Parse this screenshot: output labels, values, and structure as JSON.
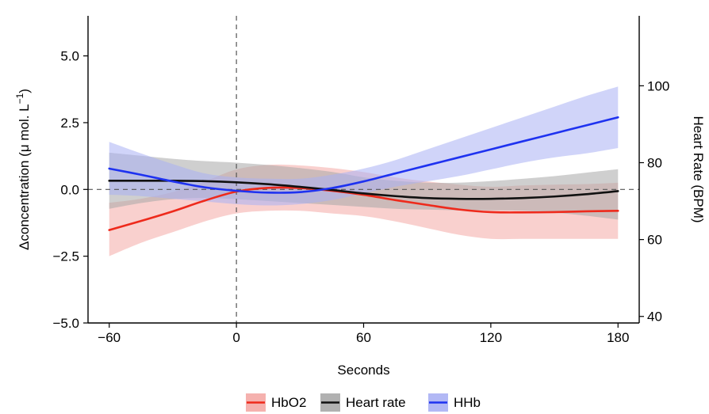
{
  "chart_data": {
    "type": "line",
    "xlabel": "Seconds",
    "ylabel_left_prefix": "Δconcentration (μ mol. L",
    "ylabel_left_exp": "−1",
    "ylabel_left_suffix": ")",
    "ylabel_right": "Heart Rate (BPM)",
    "xlim": [
      -70,
      190
    ],
    "ylim_left": [
      -5.0,
      6.5
    ],
    "ylim_right": [
      38.3,
      118.2
    ],
    "x_ticks": [
      -60,
      0,
      60,
      120,
      180
    ],
    "x_tick_labels": [
      "−60",
      "0",
      "60",
      "120",
      "180"
    ],
    "y_ticks_left": [
      -5.0,
      -2.5,
      0.0,
      2.5,
      5.0
    ],
    "y_tick_labels_left": [
      "−5.0",
      "−2.5",
      "0.0",
      "2.5",
      "5.0"
    ],
    "y_ticks_right": [
      40,
      60,
      80,
      100
    ],
    "y_tick_labels_right": [
      "40",
      "60",
      "80",
      "100"
    ],
    "reference_lines": {
      "vertical_x": 0,
      "horizontal_y": 0.0,
      "style": "dashed"
    },
    "legend_position": "bottom",
    "grid": false,
    "series": [
      {
        "name": "HbO2",
        "axis": "left",
        "color": "#ee2a1c",
        "band_color": "#f4a9a5",
        "x": [
          -60,
          -45,
          -30,
          -15,
          0,
          15,
          30,
          45,
          60,
          75,
          90,
          105,
          120,
          135,
          150,
          165,
          180
        ],
        "y": [
          -1.52,
          -1.18,
          -0.82,
          -0.42,
          -0.08,
          0.06,
          0.05,
          -0.05,
          -0.2,
          -0.4,
          -0.58,
          -0.75,
          -0.85,
          -0.86,
          -0.85,
          -0.82,
          -0.8
        ],
        "lower": [
          -2.5,
          -2.0,
          -1.6,
          -1.2,
          -0.9,
          -0.8,
          -0.8,
          -0.9,
          -1.0,
          -1.2,
          -1.45,
          -1.7,
          -1.85,
          -1.85,
          -1.85,
          -1.85,
          -1.85
        ],
        "upper": [
          -0.5,
          -0.35,
          -0.1,
          0.3,
          0.75,
          0.92,
          0.9,
          0.8,
          0.65,
          0.45,
          0.3,
          0.18,
          0.1,
          0.15,
          0.18,
          0.2,
          0.25
        ]
      },
      {
        "name": "Heart rate",
        "axis": "right",
        "color": "#111111",
        "band_color": "#a8a8a8",
        "x": [
          -60,
          -45,
          -30,
          -15,
          0,
          15,
          30,
          45,
          60,
          75,
          90,
          105,
          120,
          135,
          150,
          165,
          180
        ],
        "y": [
          75.3,
          75.3,
          75.3,
          75.2,
          74.9,
          74.4,
          73.7,
          72.9,
          72.0,
          71.3,
          70.8,
          70.6,
          70.6,
          70.8,
          71.2,
          71.8,
          72.6
        ],
        "lower": [
          68.0,
          69.5,
          70.5,
          70.8,
          70.5,
          70.0,
          69.5,
          69.0,
          68.5,
          68.0,
          67.8,
          67.6,
          67.6,
          67.5,
          67.0,
          66.2,
          65.2
        ],
        "upper": [
          82.6,
          81.8,
          81.0,
          80.4,
          80.0,
          79.4,
          78.6,
          77.6,
          76.2,
          75.3,
          74.8,
          74.8,
          75.2,
          75.8,
          76.5,
          77.4,
          78.3
        ]
      },
      {
        "name": "HHb",
        "axis": "left",
        "color": "#1e32f0",
        "band_color": "#aab0f4",
        "x": [
          -60,
          -45,
          -30,
          -15,
          0,
          15,
          30,
          45,
          60,
          75,
          90,
          105,
          120,
          135,
          150,
          165,
          180
        ],
        "y": [
          0.78,
          0.55,
          0.3,
          0.08,
          -0.05,
          -0.12,
          -0.1,
          0.05,
          0.3,
          0.6,
          0.9,
          1.2,
          1.5,
          1.8,
          2.1,
          2.4,
          2.7
        ],
        "lower": [
          -0.2,
          -0.25,
          -0.35,
          -0.45,
          -0.55,
          -0.6,
          -0.55,
          -0.4,
          -0.15,
          0.1,
          0.3,
          0.5,
          0.75,
          1.0,
          1.2,
          1.35,
          1.55
        ],
        "upper": [
          1.78,
          1.35,
          0.95,
          0.6,
          0.45,
          0.4,
          0.4,
          0.55,
          0.78,
          1.1,
          1.5,
          1.9,
          2.3,
          2.7,
          3.1,
          3.5,
          3.85
        ]
      }
    ]
  }
}
